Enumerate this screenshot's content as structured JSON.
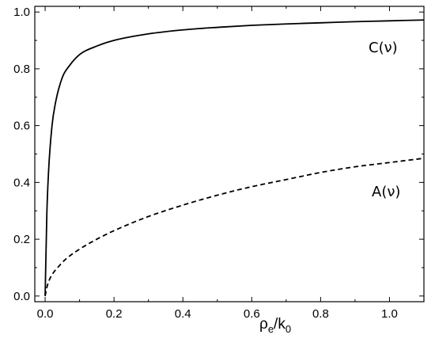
{
  "chart_data": {
    "type": "line",
    "xlabel": {
      "base": "ρ",
      "sub1": "e",
      "mid": "/k",
      "sub2": "0"
    },
    "ylabel": "",
    "xlim": [
      -0.03,
      1.1
    ],
    "ylim": [
      -0.02,
      1.02
    ],
    "xticks": [
      0.0,
      0.2,
      0.4,
      0.6,
      0.8,
      1.0
    ],
    "xtick_labels": [
      "0.0",
      "0.2",
      "0.4",
      "0.6",
      "0.8",
      "1.0"
    ],
    "yticks": [
      0.0,
      0.2,
      0.4,
      0.6,
      0.8,
      1.0
    ],
    "ytick_labels": [
      "0.0",
      "0.2",
      "0.4",
      "0.6",
      "0.8",
      "1.0"
    ],
    "grid": false,
    "legend": "none",
    "series": [
      {
        "name": "C(ν)",
        "style": "solid",
        "color": "#000000",
        "x": [
          0.0,
          0.005,
          0.01,
          0.02,
          0.03,
          0.05,
          0.07,
          0.1,
          0.15,
          0.2,
          0.3,
          0.4,
          0.5,
          0.6,
          0.7,
          0.8,
          0.9,
          1.0,
          1.1
        ],
        "y": [
          0.0,
          0.29,
          0.44,
          0.6,
          0.68,
          0.77,
          0.81,
          0.85,
          0.88,
          0.9,
          0.923,
          0.937,
          0.946,
          0.953,
          0.958,
          0.962,
          0.966,
          0.969,
          0.972
        ]
      },
      {
        "name": "A(ν)",
        "style": "dashed",
        "color": "#000000",
        "x": [
          0.0,
          0.005,
          0.01,
          0.02,
          0.04,
          0.06,
          0.1,
          0.15,
          0.2,
          0.3,
          0.4,
          0.5,
          0.6,
          0.7,
          0.8,
          0.9,
          1.0,
          1.1
        ],
        "y": [
          0.0,
          0.03,
          0.05,
          0.075,
          0.105,
          0.13,
          0.165,
          0.2,
          0.23,
          0.28,
          0.32,
          0.355,
          0.385,
          0.41,
          0.435,
          0.455,
          0.47,
          0.485
        ]
      }
    ],
    "annotations": [
      {
        "text": "C(ν)",
        "series": 0
      },
      {
        "text": "A(ν)",
        "series": 1
      }
    ]
  }
}
